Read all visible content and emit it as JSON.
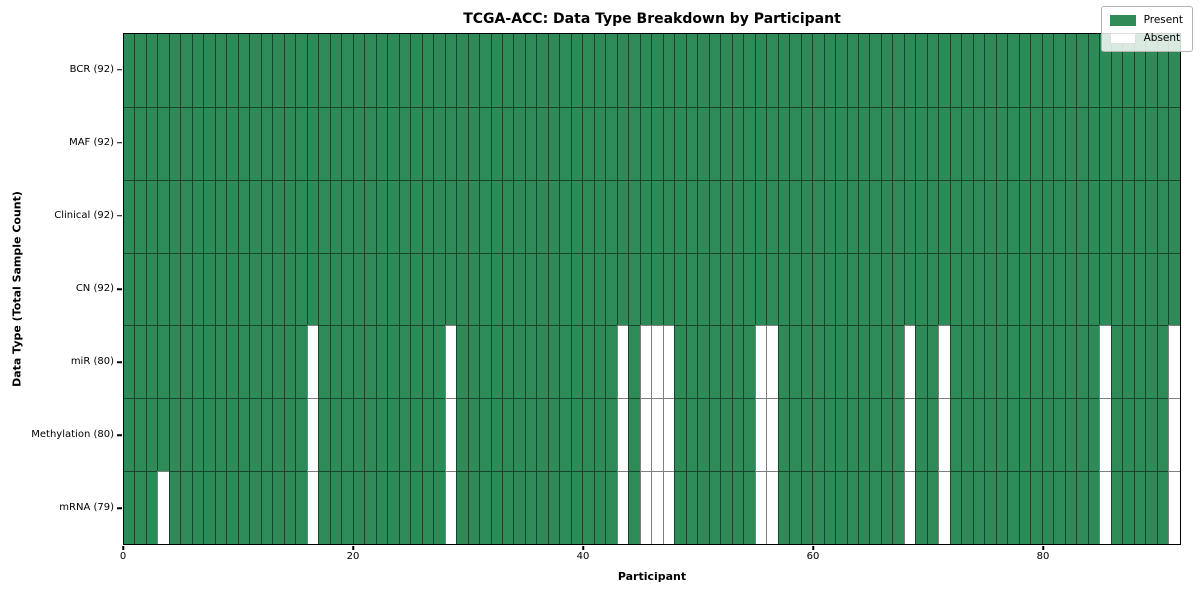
{
  "chart_data": {
    "type": "heatmap",
    "title": "TCGA-ACC: Data Type Breakdown by Participant",
    "xlabel": "Participant",
    "ylabel": "Data Type (Total Sample Count)",
    "x_ticks": [
      0,
      20,
      40,
      60,
      80
    ],
    "x_range": [
      0,
      92
    ],
    "n_participants": 92,
    "grid": true,
    "legend_position": "upper right",
    "colors": {
      "present": "#2e8b57",
      "absent": "#ffffff",
      "gridline": "rgba(0,0,0,0.5)",
      "spine": "#000000"
    },
    "legend": [
      {
        "label": "Present",
        "color": "#2e8b57"
      },
      {
        "label": "Absent",
        "color": "#ffffff"
      }
    ],
    "rows": [
      {
        "name": "BCR",
        "label": "BCR (92)",
        "count": 92,
        "absent": []
      },
      {
        "name": "MAF",
        "label": "MAF (92)",
        "count": 92,
        "absent": []
      },
      {
        "name": "Clinical",
        "label": "Clinical (92)",
        "count": 92,
        "absent": []
      },
      {
        "name": "CN",
        "label": "CN (92)",
        "count": 92,
        "absent": []
      },
      {
        "name": "miR",
        "label": "miR (80)",
        "count": 80,
        "absent": [
          16,
          28,
          43,
          45,
          46,
          47,
          55,
          56,
          68,
          71,
          85,
          91
        ]
      },
      {
        "name": "Methylation",
        "label": "Methylation (80)",
        "count": 80,
        "absent": [
          16,
          28,
          43,
          45,
          46,
          47,
          55,
          56,
          68,
          71,
          85,
          91
        ]
      },
      {
        "name": "mRNA",
        "label": "mRNA (79)",
        "count": 79,
        "absent": [
          3,
          16,
          28,
          43,
          45,
          46,
          47,
          55,
          56,
          68,
          71,
          85,
          91
        ]
      }
    ]
  }
}
